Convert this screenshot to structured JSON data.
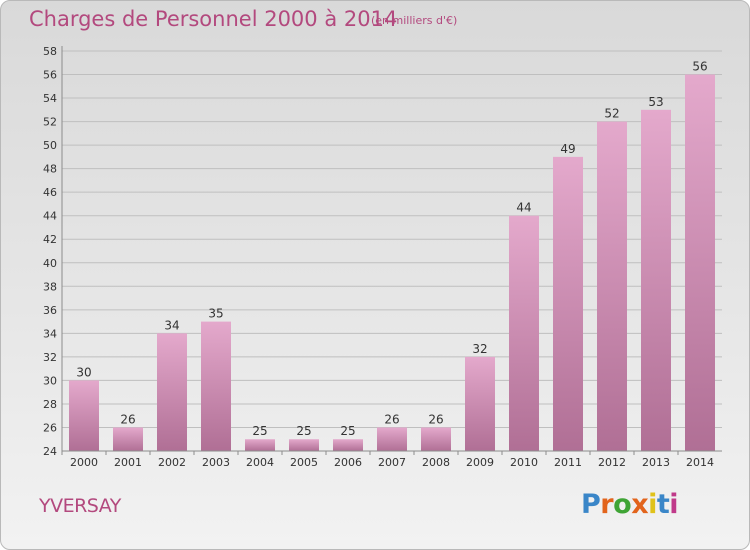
{
  "header": {
    "title": "Charges de Personnel 2000 à 2014",
    "subtitle": "(en milliers d'€)"
  },
  "footer": {
    "commune": "YVERSAY",
    "logo_text": "Proxiti",
    "logo_colors": [
      "#3a86c8",
      "#e2641c",
      "#3fa435",
      "#e2641c",
      "#e0c21a",
      "#3a86c8",
      "#c03a8a"
    ]
  },
  "colors": {
    "bar_top": "#e4a9cc",
    "bar_bottom": "#b06f95",
    "text_accent": "#b3497e",
    "axis": "#8c8c8c",
    "grid": "#bfbfbf"
  },
  "chart_data": {
    "type": "bar",
    "title": "Charges de Personnel 2000 à 2014",
    "subtitle": "(en milliers d'€)",
    "xlabel": "",
    "ylabel": "",
    "categories": [
      "2000",
      "2001",
      "2002",
      "2003",
      "2004",
      "2005",
      "2006",
      "2007",
      "2008",
      "2009",
      "2010",
      "2011",
      "2012",
      "2013",
      "2014"
    ],
    "values": [
      30,
      26,
      34,
      35,
      25,
      25,
      25,
      26,
      26,
      32,
      44,
      49,
      52,
      53,
      56
    ],
    "ylim": [
      24,
      58
    ],
    "yticks": [
      24,
      26,
      28,
      30,
      32,
      34,
      36,
      38,
      40,
      42,
      44,
      46,
      48,
      50,
      52,
      54,
      56,
      58
    ],
    "grid": true,
    "data_labels": true
  }
}
